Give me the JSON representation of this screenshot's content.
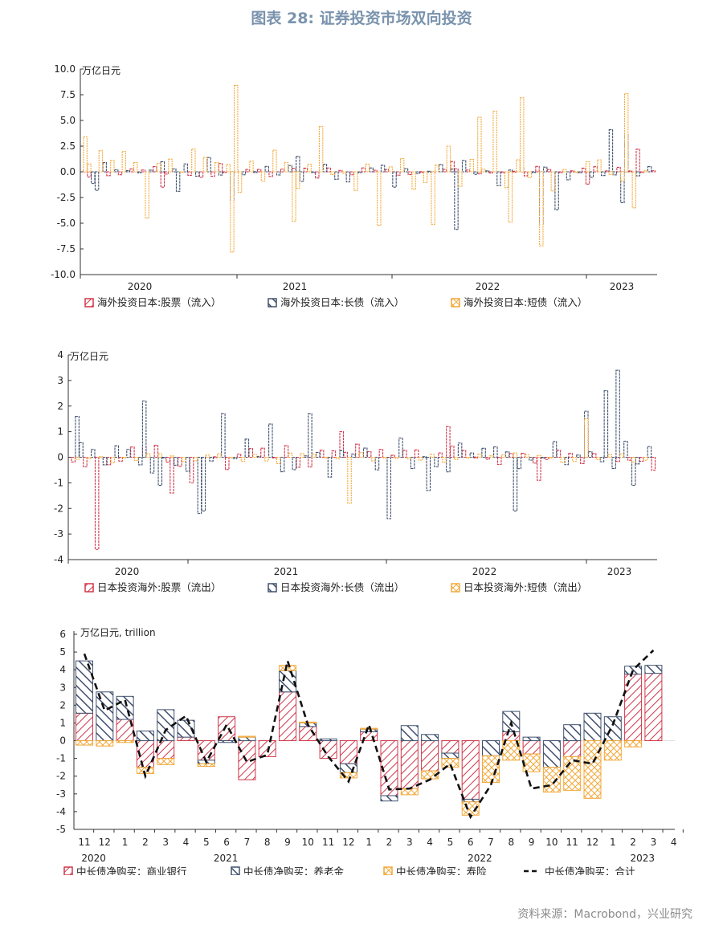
{
  "title": "图表 28: 证券投资市场双向投资",
  "source": "资料来源：Macrobond，兴业研究",
  "colors": {
    "red": "#d0364a",
    "navy": "#40506e",
    "orange": "#f3a93b",
    "axis": "#333333",
    "total": "#111111"
  },
  "chart_data": [
    {
      "type": "bar",
      "unit_label": "万亿日元",
      "ylim": [
        -10,
        10
      ],
      "yticks": [
        "10.0",
        "7.5",
        "5.0",
        "2.5",
        "0.0",
        "-2.5",
        "-5.0",
        "-7.5",
        "-10.0"
      ],
      "year_labels": [
        "2020",
        "2021",
        "2022",
        "2023"
      ],
      "legend": [
        "海外投资日本:股票（流入）",
        "海外投资日本:长债（流入）",
        "海外投资日本:短债（流入）"
      ],
      "bars_per_series": 148,
      "series": [
        {
          "name": "海外投资日本:股票（流入）",
          "color": "red",
          "seed": 11,
          "amp": 0.8,
          "bias": 0,
          "spikes": [
            [
              1,
              -0.5
            ],
            [
              20,
              -1.5
            ],
            [
              35,
              0.8
            ],
            [
              60,
              -0.6
            ],
            [
              95,
              1.0
            ],
            [
              130,
              -1.2
            ],
            [
              143,
              2.2
            ]
          ]
        },
        {
          "name": "海外投资日本:长债（流入）",
          "color": "navy",
          "seed": 23,
          "amp": 1.6,
          "bias": 0,
          "spikes": [
            [
              3,
              -1.8
            ],
            [
              24,
              -1.9
            ],
            [
              38,
              -2.8
            ],
            [
              55,
              1.5
            ],
            [
              80,
              -1.5
            ],
            [
              96,
              -5.6
            ],
            [
              118,
              -5.1
            ],
            [
              122,
              -3.7
            ],
            [
              136,
              4.1
            ],
            [
              140,
              3.6
            ],
            [
              139,
              -3.0
            ]
          ]
        },
        {
          "name": "海外投资日本:短债（流入）",
          "color": "orange",
          "seed": 37,
          "amp": 2.6,
          "bias": 0,
          "spikes": [
            [
              0,
              3.4
            ],
            [
              16,
              -4.5
            ],
            [
              38,
              -7.8
            ],
            [
              39,
              8.4
            ],
            [
              54,
              -4.8
            ],
            [
              61,
              4.4
            ],
            [
              76,
              -5.2
            ],
            [
              90,
              -5.1
            ],
            [
              102,
              5.3
            ],
            [
              110,
              -4.9
            ],
            [
              118,
              -7.2
            ],
            [
              113,
              7.2
            ],
            [
              140,
              7.6
            ],
            [
              142,
              -3.5
            ],
            [
              106,
              5.9
            ]
          ]
        }
      ]
    },
    {
      "type": "bar",
      "unit_label": "万亿日元",
      "ylim": [
        -4,
        4
      ],
      "yticks": [
        "4",
        "3",
        "2",
        "1",
        "0",
        "-1",
        "-2",
        "-3",
        "-4"
      ],
      "year_labels": [
        "2020",
        "2021",
        "2022",
        "2023"
      ],
      "legend": [
        "日本投资海外:股票（流出）",
        "日本投资海外:长债（流出）",
        "日本投资海外:短债（流出）"
      ],
      "bars_per_series": 148,
      "series": [
        {
          "name": "日本投资海外:股票（流出）",
          "color": "red",
          "seed": 51,
          "amp": 0.6,
          "bias": 0,
          "spikes": [
            [
              6,
              -3.6
            ],
            [
              25,
              -1.4
            ],
            [
              30,
              -1.0
            ],
            [
              68,
              1.0
            ],
            [
              95,
              1.2
            ],
            [
              118,
              -0.9
            ],
            [
              130,
              1.1
            ]
          ]
        },
        {
          "name": "日本投资海外:长债（流出）",
          "color": "navy",
          "seed": 67,
          "amp": 0.9,
          "bias": 0,
          "spikes": [
            [
              1,
              1.6
            ],
            [
              18,
              2.2
            ],
            [
              22,
              -1.1
            ],
            [
              32,
              -2.2
            ],
            [
              33,
              -2.1
            ],
            [
              38,
              1.7
            ],
            [
              50,
              1.3
            ],
            [
              60,
              1.7
            ],
            [
              80,
              -2.4
            ],
            [
              90,
              -1.3
            ],
            [
              112,
              -2.1
            ],
            [
              130,
              1.8
            ],
            [
              135,
              2.6
            ],
            [
              138,
              3.4
            ],
            [
              142,
              -1.1
            ]
          ]
        },
        {
          "name": "日本投资海外:短债（流出）",
          "color": "orange",
          "seed": 79,
          "amp": 0.35,
          "bias": 0,
          "spikes": [
            [
              70,
              -1.8
            ],
            [
              130,
              1.5
            ]
          ]
        }
      ]
    },
    {
      "type": "bar+line",
      "unit_label": "万亿日元, trillion",
      "ylim": [
        -5,
        6
      ],
      "yticks": [
        "6",
        "5",
        "4",
        "3",
        "2",
        "1",
        "0",
        "-1",
        "-2",
        "-3",
        "-4",
        "-5"
      ],
      "categories": [
        "11",
        "12",
        "1",
        "2",
        "3",
        "4",
        "5",
        "6",
        "7",
        "8",
        "9",
        "10",
        "11",
        "12",
        "1",
        "2",
        "3",
        "4",
        "5",
        "6",
        "7",
        "8",
        "9",
        "10",
        "11",
        "12",
        "1",
        "2",
        "3",
        "4"
      ],
      "year_labels": [
        "2020",
        "2021",
        "2022",
        "2023"
      ],
      "legend": [
        "中长债净购买：商业银行",
        "中长债净购买：养老金",
        "中长债净购买：寿险",
        "中长债净购买：合计"
      ],
      "series": [
        {
          "name": "中长债净购买：商业银行",
          "values": [
            1.55,
            0.0,
            1.2,
            -1.5,
            -1.0,
            0.2,
            -1.1,
            1.35,
            -2.2,
            -0.9,
            2.75,
            0.8,
            -1.0,
            -1.3,
            0.5,
            -3.1,
            -2.7,
            -1.7,
            -0.7,
            -3.3,
            0.0,
            0.5,
            -0.75,
            0.0,
            -0.9,
            0.0,
            0.0,
            3.75,
            3.8,
            0.0
          ]
        },
        {
          "name": "中长债净购买：养老金",
          "values": [
            2.95,
            2.75,
            1.3,
            0.55,
            1.75,
            0.95,
            -0.2,
            -0.1,
            0.2,
            0.0,
            1.2,
            0.2,
            0.1,
            -0.5,
            0.15,
            -0.3,
            0.85,
            0.35,
            -0.3,
            -0.15,
            -0.85,
            1.15,
            0.2,
            -1.5,
            0.9,
            1.55,
            1.35,
            0.45,
            0.45,
            0.0
          ]
        },
        {
          "name": "中长债净购买：寿险",
          "values": [
            -0.25,
            -0.3,
            -0.1,
            -0.35,
            -0.35,
            0.0,
            -0.15,
            0.0,
            0.05,
            0.0,
            0.3,
            0.05,
            0.0,
            -0.3,
            0.05,
            0.0,
            -0.35,
            -0.45,
            -0.5,
            -0.75,
            -1.5,
            -1.1,
            -1.0,
            -1.4,
            -1.9,
            -3.25,
            -1.1,
            -0.35,
            0.0,
            0.0
          ]
        },
        {
          "name": "中长债净购买：合计",
          "style": "dashed-line",
          "values": [
            4.9,
            1.7,
            2.3,
            -2.0,
            0.6,
            1.4,
            -1.2,
            0.9,
            -1.2,
            -0.8,
            4.5,
            0.9,
            -0.9,
            -2.3,
            0.9,
            -2.75,
            -2.7,
            -2.2,
            -1.3,
            -4.3,
            -2.5,
            1.0,
            -2.7,
            -2.5,
            -1.1,
            -1.3,
            0.9,
            4.0,
            5.1,
            null
          ]
        }
      ]
    }
  ]
}
